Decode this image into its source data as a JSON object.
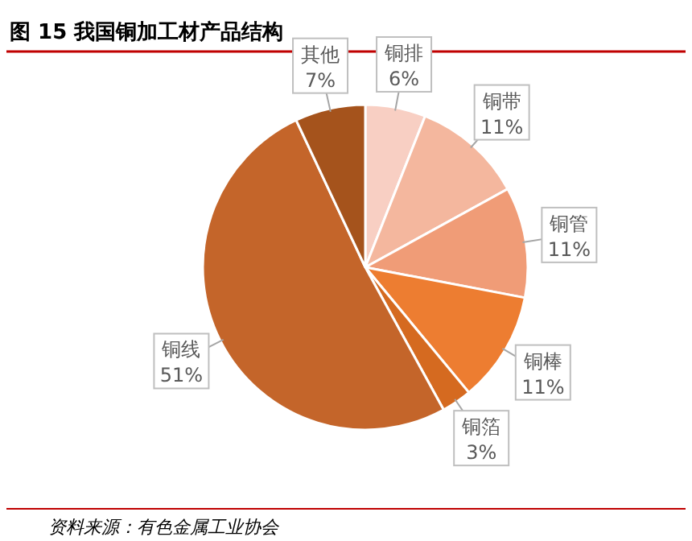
{
  "chart_data": {
    "type": "pie",
    "title": "图 15  我国铜加工材产品结构",
    "categories": [
      "铜排",
      "铜带",
      "铜管",
      "铜棒",
      "铜箔",
      "铜线",
      "其他"
    ],
    "values": [
      6,
      11,
      11,
      11,
      3,
      51,
      7
    ],
    "colors": [
      "#f8cfc3",
      "#f4b79e",
      "#f09c77",
      "#ed7d31",
      "#d56a20",
      "#c4652a",
      "#a5531c"
    ],
    "value_labels": [
      "6%",
      "11%",
      "11%",
      "11%",
      "3%",
      "51%",
      "7%"
    ],
    "annotations": [
      "资料来源：有色金属工业协会"
    ]
  }
}
